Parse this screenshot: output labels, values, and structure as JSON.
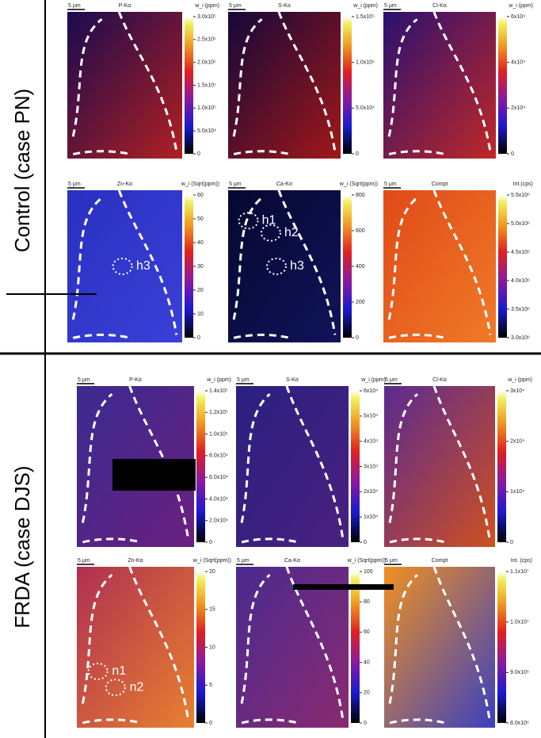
{
  "row_labels": [
    "Control (case PN)",
    "FRDA (case DJS)"
  ],
  "panels": [
    {
      "title": "P-Kα",
      "unit": "w_i (ppm)",
      "scale": "5 μm",
      "ticks": [
        "3.0x10⁵",
        "2.5x10⁵",
        "2.0x10⁵",
        "1.5x10⁵",
        "1.0x10⁵",
        "5.0x10⁴",
        "0"
      ],
      "regions": []
    },
    {
      "title": "S-Kα",
      "unit": "w_i (ppm)",
      "scale": "5 μm",
      "ticks": [
        "1.5x10⁵",
        "1.0x10⁵",
        "5.0x10⁴",
        "0"
      ],
      "regions": []
    },
    {
      "title": "Cl-Kα",
      "unit": "w_i (ppm)",
      "scale": "5 μm",
      "ticks": [
        "6x10⁴",
        "4x10⁴",
        "2x10⁴",
        "0"
      ],
      "regions": []
    },
    {
      "title": "Zn-Kα",
      "unit": "w_i (Sqrt(ppm))",
      "scale": "5 μm",
      "ticks": [
        "60",
        "50",
        "40",
        "30",
        "20",
        "10",
        "0"
      ],
      "regions": [
        "h3"
      ]
    },
    {
      "title": "Ca-Kα",
      "unit": "w_i (Sqrt(ppm))",
      "scale": "5 μm",
      "ticks": [
        "800",
        "600",
        "400",
        "200",
        "0"
      ],
      "regions": [
        "h1",
        "h2",
        "h3"
      ]
    },
    {
      "title": "Compt",
      "unit": "Int.(cps)",
      "scale": "5 μm",
      "ticks": [
        "5.5x10⁶",
        "5.0x10⁶",
        "4.5x10⁶",
        "4.0x10⁶",
        "3.5x10⁶",
        "3.0x10⁶"
      ],
      "regions": []
    },
    {
      "title": "P-Kα",
      "unit": "w_i (ppm)",
      "scale": "5 μm",
      "ticks": [
        "1.4x10⁵",
        "1.2x10⁵",
        "1.0x10⁵",
        "8.0x10⁴",
        "6.0x10⁴",
        "4.0x10⁴",
        "2.0x10⁴",
        "0"
      ],
      "regions": []
    },
    {
      "title": "S-Kα",
      "unit": "w_i (ppm)",
      "scale": "5 μm",
      "ticks": [
        "6x10⁴",
        "5x10⁴",
        "4x10⁴",
        "3x10⁴",
        "2x10⁴",
        "1x10⁴",
        "0"
      ],
      "regions": []
    },
    {
      "title": "Cl-Kα",
      "unit": "w_i (ppm)",
      "scale": "5 μm",
      "ticks": [
        "3x10⁴",
        "2x10⁴",
        "1x10⁴",
        "0"
      ],
      "regions": []
    },
    {
      "title": "Zn-Kα",
      "unit": "w_i (Sqrt(ppm))",
      "scale": "5 μm",
      "ticks": [
        "20",
        "15",
        "10",
        "5",
        "0"
      ],
      "regions": [
        "n1",
        "n2"
      ]
    },
    {
      "title": "Ca-Kα",
      "unit": "w_i (Sqrt(ppm))",
      "scale": "5 μm",
      "ticks": [
        "100",
        "80",
        "60",
        "40",
        "20",
        "0"
      ],
      "regions": []
    },
    {
      "title": "Compt",
      "unit": "Int. (cps)",
      "scale": "5 μm",
      "ticks": [
        "1.1x10⁷",
        "1.0x10⁷",
        "9.0x10⁶",
        "8.0x10⁶"
      ],
      "regions": []
    }
  ]
}
